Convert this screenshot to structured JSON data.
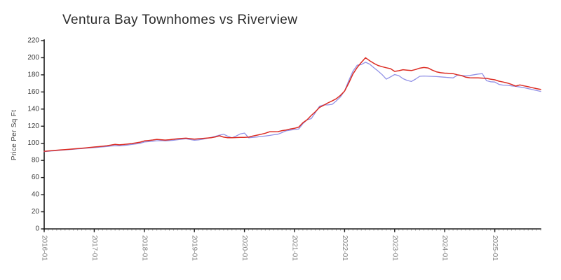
{
  "chart_data": {
    "type": "line",
    "title": "Ventura Bay Townhomes vs Riverview",
    "ylabel": "Price Per Sq Ft",
    "xlabel": "",
    "x_frequency": "monthly",
    "x_start": "2016-01",
    "x_end": "2025-12",
    "x_tick_labels": [
      "2016-01",
      "2017-01",
      "2018-01",
      "2019-01",
      "2020-01",
      "2021-01",
      "2022-01",
      "2023-01",
      "2024-01",
      "2025-01"
    ],
    "y_ticks": [
      0,
      20,
      40,
      60,
      80,
      100,
      120,
      140,
      160,
      180,
      200,
      220
    ],
    "ylim": [
      0,
      220
    ],
    "grid": false,
    "legend": "none",
    "colors": {
      "axis": "#1a1a1a",
      "title": "#2b2b2b",
      "x_tick_label": "#828282",
      "y_tick_label": "#3a3a3a",
      "minor_tick": "#b4b4b4",
      "series_red": "#dc2b22",
      "series_blue": "#9191e6"
    },
    "series": [
      {
        "name": "Ventura Bay Townhomes",
        "color": "#dc2b22",
        "values": [
          90.7,
          91.1,
          91.5,
          91.9,
          92.3,
          92.7,
          93.1,
          93.5,
          93.9,
          94.3,
          94.7,
          95.2,
          95.7,
          96.1,
          96.6,
          97.2,
          97.9,
          98.8,
          98.2,
          98.6,
          99.2,
          99.8,
          100.5,
          101.3,
          102.8,
          103.3,
          103.9,
          104.6,
          104.2,
          103.8,
          104.2,
          104.8,
          105.3,
          105.7,
          106.0,
          105.4,
          104.9,
          105.3,
          105.7,
          106.1,
          106.5,
          107.5,
          108.8,
          107.2,
          106.6,
          106.6,
          106.7,
          106.9,
          107.0,
          107.2,
          108.5,
          109.5,
          110.6,
          111.8,
          113.4,
          113.4,
          113.6,
          114.8,
          115.6,
          116.8,
          117.5,
          118.9,
          124.0,
          127.5,
          132.5,
          137.0,
          142.0,
          144.5,
          147.2,
          149.5,
          152.0,
          156.0,
          161.0,
          170.5,
          181.0,
          188.5,
          194.5,
          200.0,
          196.5,
          193.5,
          191.0,
          189.5,
          188.3,
          187.2,
          184.0,
          184.8,
          186.0,
          185.5,
          185.0,
          186.2,
          187.8,
          188.6,
          188.0,
          185.5,
          183.5,
          182.5,
          182.0,
          181.7,
          181.4,
          180.1,
          179.2,
          177.3,
          176.6,
          176.5,
          176.5,
          176.2,
          175.9,
          174.9,
          174.2,
          172.6,
          171.6,
          170.4,
          168.8,
          166.8,
          168.2,
          167.1,
          166.1,
          165.0,
          163.9,
          163.0
        ]
      },
      {
        "name": "Riverview",
        "color": "#9191e6",
        "values": [
          90.3,
          90.7,
          91.1,
          91.5,
          91.9,
          92.3,
          92.7,
          93.1,
          93.5,
          93.9,
          94.3,
          94.7,
          95.0,
          95.4,
          95.8,
          96.3,
          96.8,
          97.2,
          97.1,
          97.5,
          98.0,
          98.6,
          99.3,
          100.0,
          101.5,
          102.0,
          102.5,
          103.0,
          103.2,
          102.9,
          103.2,
          103.6,
          104.2,
          104.8,
          105.3,
          104.4,
          103.5,
          104.0,
          104.8,
          105.8,
          107.0,
          108.2,
          109.5,
          110.6,
          108.3,
          106.5,
          108.5,
          111.0,
          112.0,
          106.5,
          107.0,
          107.4,
          108.0,
          108.5,
          109.2,
          110.0,
          110.6,
          112.5,
          114.7,
          115.5,
          116.1,
          116.7,
          122.9,
          127.5,
          128.8,
          136.0,
          143.4,
          144.8,
          144.8,
          145.5,
          149.5,
          154.2,
          161.2,
          173.4,
          184.3,
          191.2,
          192.0,
          194.7,
          192.5,
          188.4,
          184.5,
          180.2,
          174.9,
          177.6,
          180.3,
          179.0,
          175.5,
          173.5,
          172.2,
          175.0,
          178.3,
          178.6,
          178.4,
          178.2,
          178.0,
          177.6,
          177.2,
          176.8,
          176.4,
          179.6,
          179.3,
          178.8,
          179.3,
          180.1,
          180.9,
          181.4,
          173.2,
          171.9,
          171.6,
          168.8,
          168.0,
          167.7,
          167.1,
          166.6,
          165.8,
          165.0,
          163.9,
          162.8,
          161.7,
          160.6
        ]
      }
    ]
  }
}
